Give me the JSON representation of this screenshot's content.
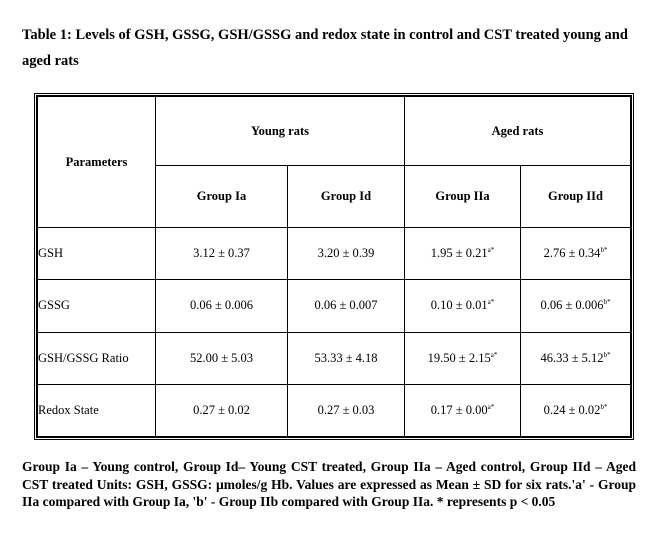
{
  "caption": "Table 1: Levels of GSH, GSSG, GSH/GSSG and redox state in control and CST treated young and aged rats",
  "table": {
    "param_header": "Parameters",
    "group_headers": [
      "Young rats",
      "Aged rats"
    ],
    "sub_headers": [
      "Group Ia",
      "Group Id",
      "Group IIa",
      "Group IId"
    ],
    "rows": [
      {
        "label": "GSH",
        "cells": [
          {
            "value": "3.12 ± 0.37",
            "sup": ""
          },
          {
            "value": "3.20 ± 0.39",
            "sup": ""
          },
          {
            "value": "1.95 ± 0.21",
            "sup": "a*"
          },
          {
            "value": "2.76 ± 0.34",
            "sup": "b*"
          }
        ]
      },
      {
        "label": "GSSG",
        "cells": [
          {
            "value": "0.06 ± 0.006",
            "sup": ""
          },
          {
            "value": "0.06 ± 0.007",
            "sup": ""
          },
          {
            "value": "0.10 ± 0.01",
            "sup": "a*"
          },
          {
            "value": "0.06 ± 0.006",
            "sup": "b*"
          }
        ]
      },
      {
        "label": "GSH/GSSG Ratio",
        "cells": [
          {
            "value": "52.00 ± 5.03",
            "sup": ""
          },
          {
            "value": "53.33 ± 4.18",
            "sup": ""
          },
          {
            "value": "19.50 ± 2.15",
            "sup": "a*"
          },
          {
            "value": "46.33 ± 5.12",
            "sup": "b*"
          }
        ]
      },
      {
        "label": "Redox State",
        "cells": [
          {
            "value": "0.27 ± 0.02",
            "sup": ""
          },
          {
            "value": "0.27 ± 0.03",
            "sup": ""
          },
          {
            "value": "0.17 ± 0.00",
            "sup": "a*"
          },
          {
            "value": "0.24 ± 0.02",
            "sup": "b*"
          }
        ]
      }
    ]
  },
  "footnote": "Group Ia – Young control, Group Id– Young CST treated, Group IIa – Aged control, Group IId – Aged CST treated  Units: GSH, GSSG: µmoles/g Hb. Values are expressed as Mean ± SD for six rats.'a' - Group IIa compared with Group Ia, 'b' - Group IIb compared with Group  IIa. * represents p < 0.05"
}
